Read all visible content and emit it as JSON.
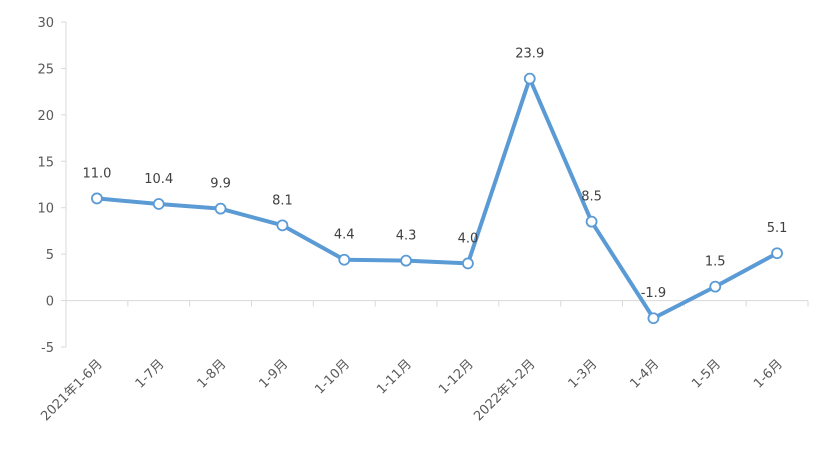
{
  "chart_data": {
    "type": "line",
    "title": "",
    "xlabel": "",
    "ylabel": "",
    "categories": [
      "2021年1-6月",
      "1-7月",
      "1-8月",
      "1-9月",
      "1-10月",
      "1-11月",
      "1-12月",
      "2022年1-2月",
      "1-3月",
      "1-4月",
      "1-5月",
      "1-6月"
    ],
    "series": [
      {
        "values": [
          11.0,
          10.4,
          9.9,
          8.1,
          4.4,
          4.3,
          4.0,
          23.9,
          8.5,
          -1.9,
          1.5,
          5.1
        ],
        "labels": [
          "11.0",
          "10.4",
          "9.9",
          "8.1",
          "4.4",
          "4.3",
          "4.0",
          "23.9",
          "8.5",
          "-1.9",
          "1.5",
          "5.1"
        ]
      }
    ],
    "ylim": [
      -5,
      30
    ],
    "yticks": [
      "-5",
      "0",
      "5",
      "10",
      "15",
      "20",
      "25",
      "30"
    ],
    "grid": false,
    "legend": "none",
    "colors": {
      "line": "#5B9BD5",
      "marker_fill": "#ffffff",
      "axis": "#D9D9D9",
      "text": "#595959"
    }
  }
}
